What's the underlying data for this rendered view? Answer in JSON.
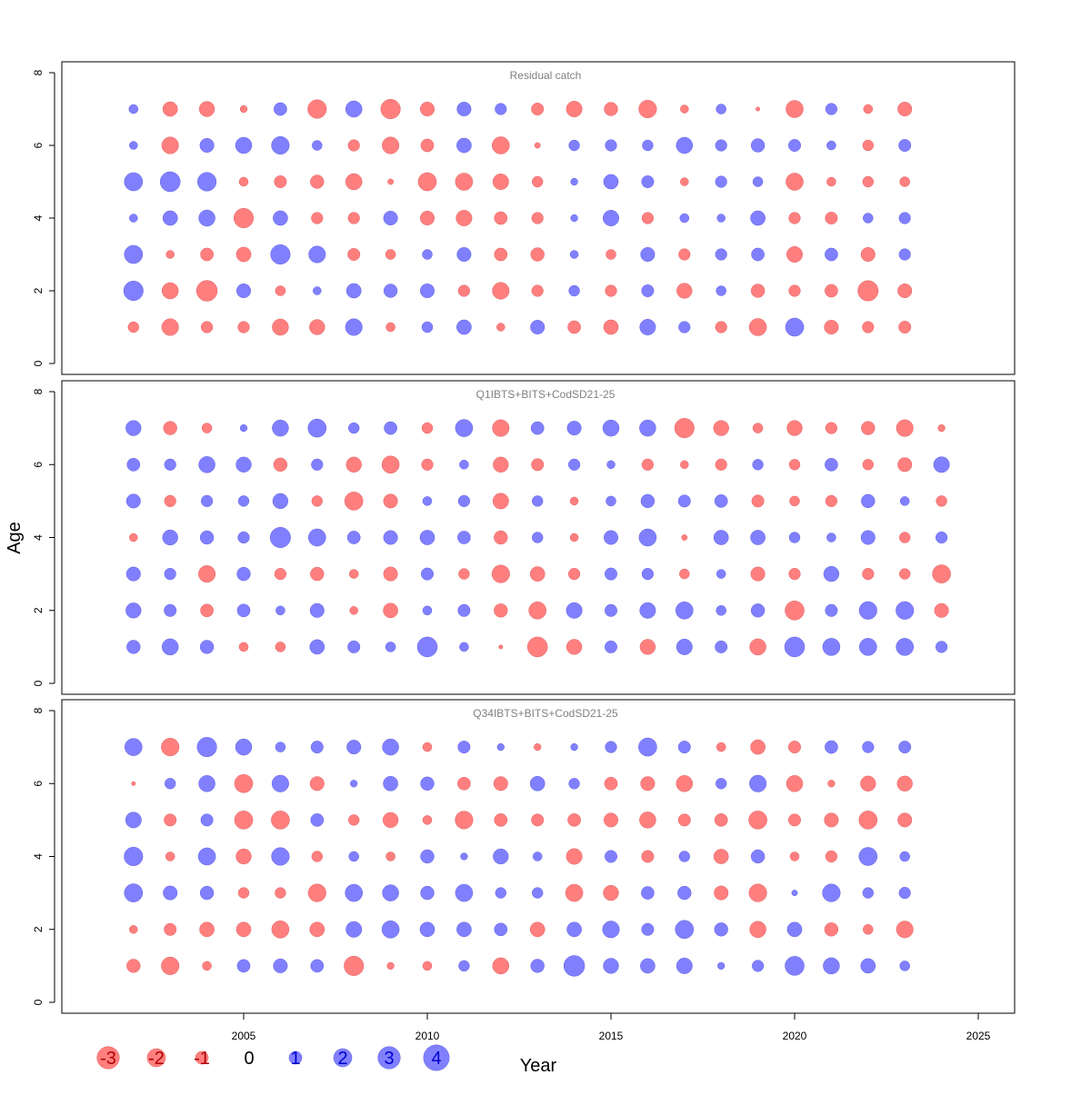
{
  "chart_data": {
    "type": "scatter",
    "subtype": "bubble",
    "xlabel": "Year",
    "ylabel": "Age",
    "x_ticks": [
      2005,
      2010,
      2015,
      2020,
      2025
    ],
    "y_ticks": [
      0,
      2,
      4,
      6,
      8
    ],
    "xlim": [
      2000.5,
      2026
    ],
    "ylim": [
      -0.3,
      8.3
    ],
    "positive_color": "#8080ff",
    "negative_color": "#ff7f7f",
    "legend": {
      "placement": "bottom-left",
      "entries": [
        {
          "label": "-3",
          "value": -3
        },
        {
          "label": "-2",
          "value": -2
        },
        {
          "label": "-1",
          "value": -1
        },
        {
          "label": "0",
          "value": 0
        },
        {
          "label": "1",
          "value": 1
        },
        {
          "label": "2",
          "value": 2
        },
        {
          "label": "3",
          "value": 3
        },
        {
          "label": "4",
          "value": 4
        }
      ]
    },
    "panels": [
      {
        "title": "Residual catch",
        "years": [
          2002,
          2003,
          2004,
          2005,
          2006,
          2007,
          2008,
          2009,
          2010,
          2011,
          2012,
          2013,
          2014,
          2015,
          2016,
          2017,
          2018,
          2019,
          2020,
          2021,
          2022,
          2023
        ],
        "ages": [
          1,
          2,
          3,
          4,
          5,
          6,
          7
        ],
        "residuals": {
          "1": [
            -0.7,
            -1.7,
            -0.8,
            -0.8,
            -1.6,
            -1.4,
            1.7,
            -0.5,
            0.7,
            1.3,
            -0.4,
            1.2,
            -1.0,
            -1.3,
            1.5,
            0.8,
            -0.8,
            -1.8,
            2.0,
            -1.2,
            -0.8,
            -0.9
          ],
          "2": [
            2.3,
            -1.6,
            -2.6,
            1.2,
            -0.6,
            0.4,
            1.3,
            1.1,
            1.2,
            -0.8,
            -1.7,
            -0.8,
            0.7,
            -0.8,
            0.9,
            -1.4,
            0.6,
            -1.1,
            -0.8,
            -1.0,
            -2.5,
            -1.2
          ],
          "3": [
            2.0,
            -0.4,
            -1.0,
            -1.3,
            2.3,
            1.7,
            -0.9,
            -0.6,
            0.6,
            1.2,
            -1.0,
            -1.1,
            0.4,
            -0.6,
            1.2,
            -0.8,
            0.8,
            1.0,
            -1.5,
            1.0,
            -1.2,
            0.8
          ],
          "4": [
            0.4,
            1.3,
            1.6,
            -2.3,
            1.3,
            -0.8,
            -0.8,
            1.2,
            -1.2,
            -1.5,
            -1.0,
            -0.8,
            0.3,
            1.5,
            -0.8,
            0.5,
            0.4,
            1.3,
            -0.8,
            -0.9,
            0.6,
            0.8
          ],
          "5": [
            2.0,
            2.4,
            2.1,
            -0.5,
            -0.9,
            -1.1,
            -1.6,
            -0.2,
            -2.0,
            -1.8,
            -1.5,
            -0.7,
            0.3,
            1.3,
            0.9,
            -0.4,
            0.8,
            0.6,
            -1.8,
            -0.5,
            -0.7,
            -0.6
          ],
          "6": [
            0.4,
            -1.7,
            1.2,
            1.6,
            1.9,
            0.6,
            -0.8,
            -1.7,
            -1.0,
            1.3,
            -1.8,
            -0.2,
            0.7,
            0.8,
            0.7,
            1.6,
            0.8,
            1.1,
            0.9,
            0.5,
            -0.7,
            0.9
          ],
          "7": [
            0.5,
            -1.3,
            -1.4,
            -0.3,
            1.0,
            -2.1,
            1.6,
            -2.3,
            -1.2,
            1.2,
            0.8,
            -0.9,
            -1.5,
            -1.1,
            -1.9,
            -0.4,
            0.6,
            -0.1,
            -1.8,
            0.8,
            -0.5,
            -1.2
          ]
        }
      },
      {
        "title": "Q1IBTS+BITS+CodSD21-25",
        "years": [
          2002,
          2003,
          2004,
          2005,
          2006,
          2007,
          2008,
          2009,
          2010,
          2011,
          2012,
          2013,
          2014,
          2015,
          2016,
          2017,
          2018,
          2019,
          2020,
          2021,
          2022,
          2023,
          2024
        ],
        "ages": [
          1,
          2,
          3,
          4,
          5,
          6,
          7
        ],
        "residuals": {
          "1": [
            1.1,
            1.6,
            1.1,
            -0.5,
            -0.6,
            1.3,
            0.9,
            0.6,
            2.4,
            0.5,
            -0.1,
            -2.4,
            -1.4,
            0.9,
            -1.4,
            1.5,
            0.9,
            -1.6,
            2.4,
            1.8,
            1.8,
            1.8,
            0.8
          ],
          "2": [
            1.4,
            0.9,
            -1.0,
            1.0,
            0.5,
            1.2,
            -0.4,
            -1.3,
            0.5,
            0.9,
            -1.1,
            -1.8,
            1.5,
            0.9,
            1.5,
            1.8,
            0.6,
            1.1,
            -2.2,
            0.9,
            1.9,
            1.9,
            -1.2
          ],
          "3": [
            1.2,
            0.8,
            -1.7,
            1.1,
            -0.8,
            -1.1,
            -0.5,
            -1.2,
            0.9,
            -0.7,
            -1.9,
            -1.3,
            -0.8,
            0.9,
            0.8,
            -0.6,
            0.5,
            -1.2,
            -0.8,
            1.4,
            -0.8,
            -0.7,
            -2.0
          ],
          "4": [
            -0.4,
            1.4,
            1.1,
            0.8,
            2.5,
            1.8,
            1.0,
            1.2,
            1.3,
            1.0,
            -1.1,
            0.7,
            -0.4,
            1.2,
            1.8,
            -0.2,
            1.3,
            1.3,
            0.7,
            0.5,
            1.2,
            -0.7,
            0.8
          ],
          "5": [
            1.2,
            -0.8,
            0.8,
            0.7,
            1.4,
            -0.7,
            -2.0,
            -1.2,
            0.5,
            0.8,
            -1.5,
            0.7,
            -0.4,
            0.6,
            1.1,
            0.9,
            1.0,
            -0.9,
            -0.6,
            -0.8,
            1.1,
            0.5,
            -0.7
          ],
          "6": [
            1.0,
            0.8,
            1.6,
            1.4,
            -1.1,
            0.8,
            -1.4,
            -1.8,
            -0.8,
            0.5,
            -1.4,
            -0.9,
            0.8,
            0.4,
            -0.8,
            -0.4,
            -0.8,
            0.7,
            -0.7,
            1.0,
            -0.7,
            -1.2,
            1.5
          ],
          "7": [
            1.4,
            -1.1,
            -0.6,
            0.3,
            1.6,
            2.0,
            0.7,
            1.0,
            -0.7,
            1.8,
            -1.7,
            1.0,
            1.2,
            1.6,
            1.6,
            -2.3,
            -1.4,
            -0.6,
            -1.4,
            -0.8,
            -1.1,
            -1.7,
            -0.3
          ]
        }
      },
      {
        "title": "Q34IBTS+BITS+CodSD21-25",
        "years": [
          2002,
          2003,
          2004,
          2005,
          2006,
          2007,
          2008,
          2009,
          2010,
          2011,
          2012,
          2013,
          2014,
          2015,
          2016,
          2017,
          2018,
          2019,
          2020,
          2021,
          2022,
          2023
        ],
        "ages": [
          1,
          2,
          3,
          4,
          5,
          6,
          7
        ],
        "residuals": {
          "1": [
            -1.1,
            -1.9,
            -0.5,
            1.0,
            1.2,
            1.0,
            -2.3,
            -0.3,
            -0.5,
            0.7,
            -1.6,
            1.1,
            2.6,
            1.4,
            1.3,
            1.5,
            0.3,
            0.8,
            2.2,
            1.6,
            1.3,
            0.6
          ],
          "2": [
            -0.4,
            -0.9,
            -1.3,
            -1.3,
            -1.8,
            -1.3,
            1.5,
            1.8,
            1.3,
            1.3,
            1.0,
            -1.3,
            1.3,
            1.7,
            0.9,
            2.0,
            1.1,
            -1.6,
            1.3,
            -1.1,
            -0.6,
            -1.7
          ],
          "3": [
            2.0,
            1.2,
            1.1,
            -0.7,
            -0.7,
            -1.9,
            1.8,
            1.6,
            1.1,
            1.8,
            0.7,
            0.7,
            -1.8,
            -1.4,
            1.0,
            1.1,
            -1.2,
            -1.9,
            0.2,
            1.9,
            0.7,
            0.8
          ],
          "4": [
            2.1,
            -0.5,
            1.8,
            -1.4,
            1.9,
            -0.7,
            0.6,
            -0.5,
            1.1,
            0.3,
            1.4,
            0.5,
            -1.5,
            0.9,
            -0.9,
            0.7,
            -1.3,
            1.1,
            -0.5,
            -0.8,
            2.0,
            0.6
          ],
          "5": [
            1.5,
            -0.9,
            0.9,
            -2.0,
            -2.0,
            1.0,
            -0.7,
            -1.4,
            -0.5,
            -1.9,
            -1.0,
            -0.9,
            -1.0,
            -1.2,
            -1.6,
            -0.9,
            -1.0,
            -2.0,
            -0.9,
            -1.2,
            -2.0,
            -1.2
          ],
          "6": [
            -0.1,
            0.7,
            1.6,
            -2.0,
            1.7,
            -1.2,
            0.3,
            1.3,
            1.1,
            -1.0,
            -1.2,
            1.3,
            0.7,
            -1.0,
            -1.2,
            -1.6,
            0.7,
            1.7,
            -1.6,
            -0.3,
            -1.4,
            -1.4
          ],
          "7": [
            1.8,
            -1.9,
            2.3,
            1.6,
            0.6,
            0.9,
            1.2,
            1.6,
            -0.5,
            0.9,
            0.3,
            -0.3,
            0.3,
            0.8,
            2.0,
            0.9,
            -0.5,
            -1.3,
            -0.9,
            1.0,
            0.8,
            0.9
          ]
        }
      }
    ]
  }
}
